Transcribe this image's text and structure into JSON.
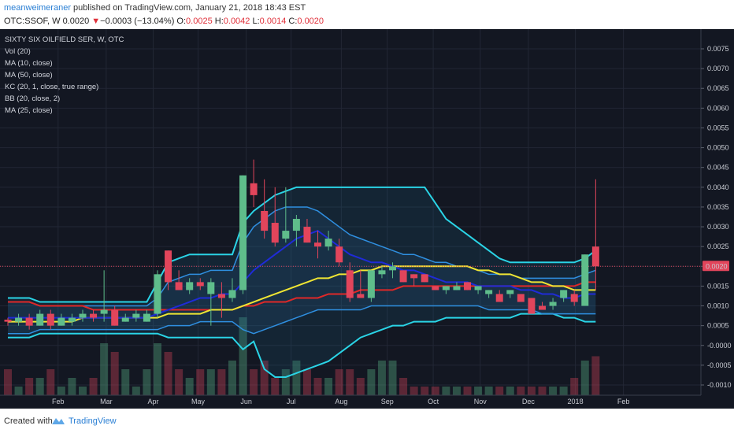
{
  "header": {
    "author": "meanweimeraner",
    "publish_text": " published on TradingView.com, January 21, 2018 18:43 EST",
    "symbol": "OTC:SSOF, W",
    "last_price": "0.0020",
    "change_arrow": "▼",
    "change": "−0.0003 (−13.04%)",
    "open_label": "O:",
    "open": "0.0025",
    "high_label": "H:",
    "high": "0.0042",
    "low_label": "L:",
    "low": "0.0014",
    "close_label": "C:",
    "close": "0.0020"
  },
  "legend": {
    "title": "SIXTY SIX OILFIELD SER, W, OTC",
    "indicators": [
      "Vol (20)",
      "MA (10, close)",
      "MA (50, close)",
      "KC (20, 1, close, true range)",
      "BB (20, close, 2)",
      "MA (25, close)"
    ]
  },
  "footer": {
    "created_with": "Created with",
    "brand": "TradingView"
  },
  "colors": {
    "background": "#131722",
    "up_candle": "#5fbd8b",
    "down_candle": "#e2455b",
    "bb_line": "#2ad4e6",
    "kc_line": "#2f8fe0",
    "ma10": "#1f2bd8",
    "ma25": "#f0e633",
    "ma50": "#e02828",
    "last_price_label": "#e2455b"
  },
  "chart_data": {
    "type": "candlestick",
    "title": "SIXTY SIX OILFIELD SER, W, OTC",
    "x_ticks": [
      "Feb",
      "Mar",
      "Apr",
      "May",
      "Jun",
      "Jul",
      "Aug",
      "Sep",
      "Oct",
      "Nov",
      "Dec",
      "2018",
      "Feb"
    ],
    "y_ticks": [
      "0.0075",
      "0.0070",
      "0.0065",
      "0.0060",
      "0.0055",
      "0.0050",
      "0.0045",
      "0.0040",
      "0.0035",
      "0.0030",
      "0.0025",
      "0.0020",
      "0.0015",
      "0.0010",
      "0.0005",
      "-0.0000",
      "-0.0005",
      "-0.0010"
    ],
    "ylim": [
      -0.0012,
      0.0081
    ],
    "last_price_label": "0.0020",
    "candles": [
      {
        "week": "2017-01-02",
        "o": 0.00065,
        "h": 0.0007,
        "l": 0.0005,
        "c": 0.0006
      },
      {
        "week": "2017-01-09",
        "o": 0.0006,
        "h": 0.0008,
        "l": 0.0005,
        "c": 0.0007
      },
      {
        "week": "2017-01-16",
        "o": 0.0007,
        "h": 0.0008,
        "l": 0.0004,
        "c": 0.0005
      },
      {
        "week": "2017-01-23",
        "o": 0.0005,
        "h": 0.0009,
        "l": 0.0005,
        "c": 0.0008
      },
      {
        "week": "2017-01-30",
        "o": 0.0008,
        "h": 0.0009,
        "l": 0.0004,
        "c": 0.0005
      },
      {
        "week": "2017-02-06",
        "o": 0.0005,
        "h": 0.0008,
        "l": 0.0005,
        "c": 0.0007
      },
      {
        "week": "2017-02-13",
        "o": 0.0006,
        "h": 0.0008,
        "l": 0.0005,
        "c": 0.0007
      },
      {
        "week": "2017-02-20",
        "o": 0.0007,
        "h": 0.0009,
        "l": 0.0006,
        "c": 0.0008
      },
      {
        "week": "2017-02-27",
        "o": 0.0008,
        "h": 0.0009,
        "l": 0.0006,
        "c": 0.0007
      },
      {
        "week": "2017-03-06",
        "o": 0.0008,
        "h": 0.0019,
        "l": 0.0006,
        "c": 0.0009
      },
      {
        "week": "2017-03-13",
        "o": 0.0009,
        "h": 0.001,
        "l": 0.0005,
        "c": 0.0005
      },
      {
        "week": "2017-03-20",
        "o": 0.0006,
        "h": 0.0008,
        "l": 0.0006,
        "c": 0.0007
      },
      {
        "week": "2017-03-27",
        "o": 0.0007,
        "h": 0.0009,
        "l": 0.0006,
        "c": 0.0008
      },
      {
        "week": "2017-04-03",
        "o": 0.0006,
        "h": 0.0009,
        "l": 0.0006,
        "c": 0.0008
      },
      {
        "week": "2017-04-10",
        "o": 0.0008,
        "h": 0.0019,
        "l": 0.0007,
        "c": 0.0018
      },
      {
        "week": "2017-04-17",
        "o": 0.0024,
        "h": 0.0024,
        "l": 0.0014,
        "c": 0.0016
      },
      {
        "week": "2017-04-24",
        "o": 0.0016,
        "h": 0.0019,
        "l": 0.0014,
        "c": 0.0014
      },
      {
        "week": "2017-05-01",
        "o": 0.0014,
        "h": 0.0017,
        "l": 0.0013,
        "c": 0.0016
      },
      {
        "week": "2017-05-08",
        "o": 0.0016,
        "h": 0.0017,
        "l": 0.0014,
        "c": 0.0015
      },
      {
        "week": "2017-05-15",
        "o": 0.0013,
        "h": 0.0017,
        "l": 0.0005,
        "c": 0.0016
      },
      {
        "week": "2017-05-22",
        "o": 0.0013,
        "h": 0.0016,
        "l": 0.0007,
        "c": 0.0012
      },
      {
        "week": "2017-05-29",
        "o": 0.0012,
        "h": 0.0017,
        "l": 0.0011,
        "c": 0.0014
      },
      {
        "week": "2017-06-05",
        "o": 0.0014,
        "h": 0.0043,
        "l": 0.0013,
        "c": 0.0043
      },
      {
        "week": "2017-06-12",
        "o": 0.0041,
        "h": 0.0047,
        "l": 0.0035,
        "c": 0.0038
      },
      {
        "week": "2017-06-19",
        "o": 0.0034,
        "h": 0.0042,
        "l": 0.0027,
        "c": 0.0029
      },
      {
        "week": "2017-06-26",
        "o": 0.0031,
        "h": 0.004,
        "l": 0.0025,
        "c": 0.0026
      },
      {
        "week": "2017-07-03",
        "o": 0.0027,
        "h": 0.004,
        "l": 0.0026,
        "c": 0.0029
      },
      {
        "week": "2017-07-10",
        "o": 0.0029,
        "h": 0.0033,
        "l": 0.0025,
        "c": 0.0032
      },
      {
        "week": "2017-07-17",
        "o": 0.003,
        "h": 0.0032,
        "l": 0.0026,
        "c": 0.0026
      },
      {
        "week": "2017-07-24",
        "o": 0.0026,
        "h": 0.0029,
        "l": 0.0022,
        "c": 0.0025
      },
      {
        "week": "2017-07-31",
        "o": 0.0025,
        "h": 0.0029,
        "l": 0.0024,
        "c": 0.0027
      },
      {
        "week": "2017-08-07",
        "o": 0.0025,
        "h": 0.0027,
        "l": 0.002,
        "c": 0.0021
      },
      {
        "week": "2017-08-14",
        "o": 0.0019,
        "h": 0.0021,
        "l": 0.0011,
        "c": 0.0012
      },
      {
        "week": "2017-08-21",
        "o": 0.0013,
        "h": 0.0019,
        "l": 0.0012,
        "c": 0.0012
      },
      {
        "week": "2017-08-28",
        "o": 0.0012,
        "h": 0.0019,
        "l": 0.0011,
        "c": 0.0019
      },
      {
        "week": "2017-09-04",
        "o": 0.0018,
        "h": 0.002,
        "l": 0.0017,
        "c": 0.0019
      },
      {
        "week": "2017-09-11",
        "o": 0.0019,
        "h": 0.0021,
        "l": 0.0017,
        "c": 0.002
      },
      {
        "week": "2017-09-18",
        "o": 0.0019,
        "h": 0.0019,
        "l": 0.0016,
        "c": 0.0016
      },
      {
        "week": "2017-09-25",
        "o": 0.0018,
        "h": 0.0018,
        "l": 0.0015,
        "c": 0.0017
      },
      {
        "week": "2017-10-02",
        "o": 0.0018,
        "h": 0.0018,
        "l": 0.0016,
        "c": 0.0016
      },
      {
        "week": "2017-10-09",
        "o": 0.0015,
        "h": 0.0015,
        "l": 0.0014,
        "c": 0.0014
      },
      {
        "week": "2017-10-16",
        "o": 0.0014,
        "h": 0.0015,
        "l": 0.0013,
        "c": 0.0015
      },
      {
        "week": "2017-10-23",
        "o": 0.0014,
        "h": 0.0016,
        "l": 0.0014,
        "c": 0.0015
      },
      {
        "week": "2017-10-30",
        "o": 0.0016,
        "h": 0.0016,
        "l": 0.0014,
        "c": 0.0014
      },
      {
        "week": "2017-11-06",
        "o": 0.0014,
        "h": 0.0015,
        "l": 0.0013,
        "c": 0.0015
      },
      {
        "week": "2017-11-13",
        "o": 0.0013,
        "h": 0.0014,
        "l": 0.0012,
        "c": 0.0014
      },
      {
        "week": "2017-11-20",
        "o": 0.0013,
        "h": 0.0014,
        "l": 0.0011,
        "c": 0.0011
      },
      {
        "week": "2017-11-27",
        "o": 0.0013,
        "h": 0.0014,
        "l": 0.0012,
        "c": 0.0014
      },
      {
        "week": "2017-12-04",
        "o": 0.0013,
        "h": 0.0013,
        "l": 0.0011,
        "c": 0.0011
      },
      {
        "week": "2017-12-11",
        "o": 0.0012,
        "h": 0.0012,
        "l": 0.0008,
        "c": 0.0008
      },
      {
        "week": "2017-12-18",
        "o": 0.001,
        "h": 0.0011,
        "l": 0.0009,
        "c": 0.0009
      },
      {
        "week": "2017-12-25",
        "o": 0.001,
        "h": 0.0012,
        "l": 0.0009,
        "c": 0.0011
      },
      {
        "week": "2018-01-01",
        "o": 0.0012,
        "h": 0.0014,
        "l": 0.0011,
        "c": 0.0014
      },
      {
        "week": "2018-01-08",
        "o": 0.0013,
        "h": 0.0014,
        "l": 0.001,
        "c": 0.0011
      },
      {
        "week": "2018-01-15",
        "o": 0.001,
        "h": 0.0023,
        "l": 0.001,
        "c": 0.0023
      },
      {
        "week": "2018-01-22",
        "o": 0.0025,
        "h": 0.0042,
        "l": 0.0014,
        "c": 0.002
      }
    ],
    "volume_series": {
      "name": "Vol (20)",
      "values": [
        0.3,
        0.1,
        0.2,
        0.2,
        0.3,
        0.1,
        0.2,
        0.1,
        0.2,
        0.6,
        0.5,
        0.3,
        0.1,
        0.3,
        0.6,
        0.5,
        0.3,
        0.2,
        0.3,
        0.3,
        0.3,
        0.4,
        0.9,
        0.3,
        0.4,
        0.2,
        0.3,
        0.4,
        0.3,
        0.2,
        0.2,
        0.3,
        0.3,
        0.2,
        0.3,
        0.4,
        0.4,
        0.2,
        0.1,
        0.1,
        0.1,
        0.1,
        0.1,
        0.1,
        0.1,
        0.1,
        0.1,
        0.1,
        0.1,
        0.1,
        0.1,
        0.1,
        0.1,
        0.2,
        0.4,
        0.45
      ]
    },
    "indicator_series": [
      {
        "name": "MA (10, close)",
        "color": "#1f2bd8",
        "values": [
          0.0007,
          0.0007,
          0.0007,
          0.0007,
          0.0007,
          0.0007,
          0.0007,
          0.0007,
          0.0007,
          0.0007,
          0.0007,
          0.0007,
          0.0007,
          0.0007,
          0.0008,
          0.0009,
          0.001,
          0.0011,
          0.0012,
          0.0012,
          0.0013,
          0.0013,
          0.0016,
          0.0019,
          0.0021,
          0.0023,
          0.0025,
          0.0027,
          0.0028,
          0.0029,
          0.0027,
          0.0025,
          0.0023,
          0.0022,
          0.0021,
          0.0021,
          0.002,
          0.0019,
          0.0019,
          0.0018,
          0.0017,
          0.0016,
          0.0016,
          0.0016,
          0.0015,
          0.0015,
          0.0015,
          0.0015,
          0.0014,
          0.0014,
          0.0013,
          0.0013,
          0.0012,
          0.0012,
          0.0013,
          0.0013
        ]
      },
      {
        "name": "MA (25, close)",
        "color": "#f0e633",
        "values": [
          0.0006,
          0.0006,
          0.0006,
          0.0006,
          0.0006,
          0.0006,
          0.0006,
          0.0007,
          0.0007,
          0.0007,
          0.0007,
          0.0007,
          0.0007,
          0.0007,
          0.0007,
          0.0008,
          0.0008,
          0.0008,
          0.0008,
          0.0009,
          0.0009,
          0.0009,
          0.001,
          0.0011,
          0.0012,
          0.0013,
          0.0014,
          0.0015,
          0.0016,
          0.0017,
          0.0017,
          0.0018,
          0.0018,
          0.0019,
          0.0019,
          0.002,
          0.002,
          0.002,
          0.002,
          0.002,
          0.002,
          0.002,
          0.002,
          0.002,
          0.0019,
          0.0019,
          0.0018,
          0.0018,
          0.0017,
          0.0016,
          0.0016,
          0.0015,
          0.0015,
          0.0014,
          0.0014,
          0.0014
        ]
      },
      {
        "name": "MA (50, close)",
        "color": "#e02828",
        "values": [
          0.0011,
          0.0011,
          0.0011,
          0.001,
          0.001,
          0.001,
          0.001,
          0.001,
          0.0009,
          0.0009,
          0.0009,
          0.0009,
          0.0009,
          0.0009,
          0.0009,
          0.0009,
          0.0009,
          0.0009,
          0.0009,
          0.0009,
          0.0009,
          0.0009,
          0.001,
          0.001,
          0.0011,
          0.0011,
          0.0011,
          0.0012,
          0.0012,
          0.0012,
          0.0013,
          0.0013,
          0.0013,
          0.0014,
          0.0014,
          0.0014,
          0.0014,
          0.0015,
          0.0015,
          0.0015,
          0.0015,
          0.0015,
          0.0015,
          0.0015,
          0.0015,
          0.0015,
          0.0015,
          0.0015,
          0.0015,
          0.0015,
          0.0015,
          0.0015,
          0.0015,
          0.0015,
          0.0016,
          0.0016
        ]
      },
      {
        "name": "BB upper",
        "color": "#2ad4e6",
        "values": [
          0.0012,
          0.0012,
          0.0012,
          0.0011,
          0.0011,
          0.0011,
          0.0011,
          0.0011,
          0.0011,
          0.0011,
          0.0011,
          0.0011,
          0.0011,
          0.0011,
          0.0016,
          0.0021,
          0.0022,
          0.0023,
          0.0023,
          0.0023,
          0.0023,
          0.0023,
          0.0031,
          0.0034,
          0.0036,
          0.0038,
          0.0039,
          0.004,
          0.004,
          0.004,
          0.004,
          0.004,
          0.004,
          0.004,
          0.004,
          0.004,
          0.004,
          0.004,
          0.004,
          0.004,
          0.0036,
          0.0032,
          0.003,
          0.0028,
          0.0026,
          0.0024,
          0.0022,
          0.0021,
          0.0021,
          0.0021,
          0.0021,
          0.0021,
          0.0021,
          0.0021,
          0.0022,
          0.0024
        ]
      },
      {
        "name": "BB lower",
        "color": "#2ad4e6",
        "values": [
          0.0002,
          0.0002,
          0.0002,
          0.0003,
          0.0003,
          0.0003,
          0.0003,
          0.0003,
          0.0003,
          0.0003,
          0.0003,
          0.0003,
          0.0003,
          0.0003,
          0.0003,
          0.0002,
          0.0002,
          0.0002,
          0.0002,
          0.0002,
          0.0002,
          0.0002,
          -0.0001,
          0.0001,
          -0.0006,
          -0.0008,
          -0.0008,
          -0.0007,
          -0.0006,
          -0.0005,
          -0.0004,
          -0.0002,
          0.0,
          0.0002,
          0.0003,
          0.0004,
          0.0005,
          0.0005,
          0.0006,
          0.0006,
          0.0006,
          0.0007,
          0.0007,
          0.0007,
          0.0007,
          0.0007,
          0.0007,
          0.0007,
          0.0008,
          0.0008,
          0.0008,
          0.0008,
          0.0007,
          0.0007,
          0.0006,
          0.0006
        ]
      },
      {
        "name": "KC upper",
        "color": "#2f8fe0",
        "values": [
          0.0011,
          0.0011,
          0.0011,
          0.001,
          0.001,
          0.001,
          0.001,
          0.001,
          0.001,
          0.001,
          0.001,
          0.001,
          0.001,
          0.001,
          0.0012,
          0.0016,
          0.0017,
          0.0018,
          0.0018,
          0.0019,
          0.0019,
          0.0019,
          0.0026,
          0.003,
          0.0032,
          0.0034,
          0.0035,
          0.0035,
          0.0035,
          0.0034,
          0.0032,
          0.003,
          0.0028,
          0.0027,
          0.0026,
          0.0025,
          0.0024,
          0.0023,
          0.0023,
          0.0022,
          0.0021,
          0.0021,
          0.002,
          0.002,
          0.0019,
          0.0018,
          0.0018,
          0.0018,
          0.0017,
          0.0017,
          0.0017,
          0.0017,
          0.0017,
          0.0017,
          0.0018,
          0.0019
        ]
      },
      {
        "name": "KC lower",
        "color": "#2f8fe0",
        "values": [
          0.0003,
          0.0003,
          0.0003,
          0.0004,
          0.0004,
          0.0004,
          0.0004,
          0.0004,
          0.0004,
          0.0004,
          0.0004,
          0.0004,
          0.0004,
          0.0004,
          0.0004,
          0.0005,
          0.0005,
          0.0005,
          0.0006,
          0.0006,
          0.0006,
          0.0006,
          0.0004,
          0.0003,
          0.0004,
          0.0005,
          0.0006,
          0.0007,
          0.0008,
          0.0009,
          0.0009,
          0.0009,
          0.0009,
          0.0009,
          0.001,
          0.001,
          0.001,
          0.001,
          0.001,
          0.001,
          0.001,
          0.001,
          0.001,
          0.001,
          0.001,
          0.0009,
          0.0009,
          0.0009,
          0.0009,
          0.0009,
          0.0008,
          0.0008,
          0.0008,
          0.0008,
          0.0008,
          0.0008
        ]
      }
    ]
  }
}
